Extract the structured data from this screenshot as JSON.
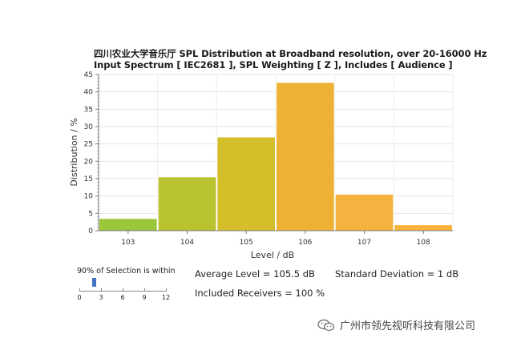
{
  "title_line1": "四川农业大学音乐厅 SPL Distribution at Broadband resolution, over 20-16000 Hz",
  "title_line2": "Input Spectrum [ IEC2681 ], SPL Weighting [ Z ], Includes [ Audience ]",
  "chart_data": {
    "type": "bar",
    "categories": [
      "103",
      "104",
      "105",
      "106",
      "107",
      "108"
    ],
    "values": [
      3.5,
      15.5,
      27,
      42.7,
      10.5,
      1.7
    ],
    "xlabel": "Level / dB",
    "ylabel": "Distribution / %",
    "ylim": [
      0,
      45
    ],
    "yticks": [
      0,
      5,
      10,
      15,
      20,
      25,
      30,
      35,
      40,
      45
    ],
    "grid": true,
    "bar_colors": [
      "#9bc63a",
      "#b9c22f",
      "#d4bf2b",
      "#eeb134",
      "#f6b23e",
      "#f8b338"
    ]
  },
  "selection": {
    "title": "90% of Selection is within",
    "value": 2,
    "ticks": [
      "0",
      "3",
      "6",
      "9",
      "12"
    ]
  },
  "stats": {
    "average": "Average Level = 105.5 dB",
    "std": "Standard Deviation = 1 dB",
    "receivers": "Included Receivers = 100 %"
  },
  "watermark": {
    "text": "广州市领先视听科技有限公司",
    "icon": "wechat-icon"
  }
}
